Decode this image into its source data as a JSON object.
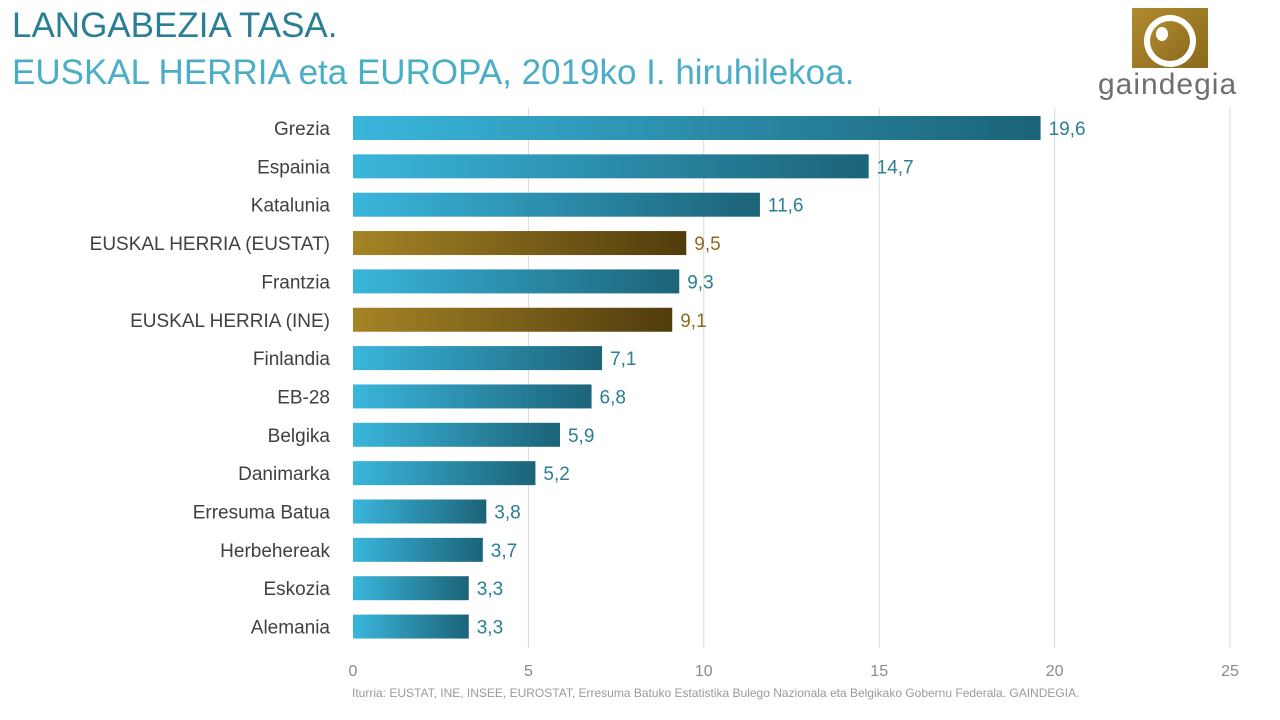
{
  "title": "LANGABEZIA TASA.",
  "subtitle": "EUSKAL HERRIA eta EUROPA, 2019ko I. hiruhilekoa.",
  "logo": {
    "text": "gaindegia",
    "icon": "gaindegia-logo"
  },
  "source": "Iturria: EUSTAT, INE, INSEE, EUROSTAT, Erresuma Batuko Estatistika Bulego Nazionala eta Belgikako Gobernu Federala. GAINDEGIA.",
  "colors": {
    "blue_start": "#3ab6dc",
    "blue_end": "#1c6378",
    "gold_start": "#a58426",
    "gold_end": "#503c0c",
    "blue_label": "#2a7f94",
    "gold_label": "#8c6d1f",
    "category_text": "#404040",
    "tick_text": "#8a8a8a",
    "grid": "#d9d9d9"
  },
  "chart_data": {
    "type": "bar",
    "orientation": "horizontal",
    "categories": [
      "Grezia",
      "Espainia",
      "Katalunia",
      "EUSKAL HERRIA (EUSTAT)",
      "Frantzia",
      "EUSKAL HERRIA (INE)",
      "Finlandia",
      "EB-28",
      "Belgika",
      "Danimarka",
      "Erresuma Batua",
      "Herbehereak",
      "Eskozia",
      "Alemania"
    ],
    "values": [
      19.6,
      14.7,
      11.6,
      9.5,
      9.3,
      9.1,
      7.1,
      6.8,
      5.9,
      5.2,
      3.8,
      3.7,
      3.3,
      3.3
    ],
    "data_labels": [
      "19,6",
      "14,7",
      "11,6",
      "9,5",
      "9,3",
      "9,1",
      "7,1",
      "6,8",
      "5,9",
      "5,2",
      "3,8",
      "3,7",
      "3,3",
      "3,3"
    ],
    "highlight": [
      false,
      false,
      false,
      true,
      false,
      true,
      false,
      false,
      false,
      false,
      false,
      false,
      false,
      false
    ],
    "xlim": [
      0,
      25
    ],
    "xticks": [
      0,
      5,
      10,
      15,
      20,
      25
    ],
    "xtick_labels": [
      "0",
      "5",
      "10",
      "15",
      "20",
      "25"
    ],
    "grid": "vertical"
  }
}
